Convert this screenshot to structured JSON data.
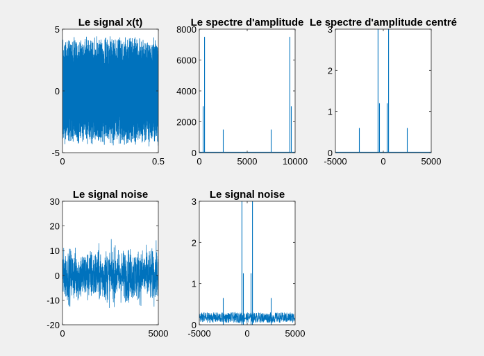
{
  "figure": {
    "background": "#f0f0f0",
    "line_color": "#0072bd"
  },
  "chart_data": [
    {
      "id": "p1",
      "type": "line",
      "title": "Le signal x(t)",
      "xlabel": "",
      "ylabel": "",
      "xlim": [
        0,
        0.5
      ],
      "ylim": [
        -5,
        5
      ],
      "xticks": [
        0,
        0.5
      ],
      "xtick_labels": [
        "0",
        "0.5"
      ],
      "yticks": [
        -5,
        0,
        5
      ],
      "ytick_labels": [
        "-5",
        "0",
        "5"
      ],
      "series": [
        {
          "kind": "dense_oscillation",
          "x_range": [
            0,
            0.5
          ],
          "envelope_max": [
            3.7,
            4.6
          ],
          "envelope_min": [
            -3.7,
            -4.6
          ]
        }
      ]
    },
    {
      "id": "p2",
      "type": "line",
      "title": "Le spectre d'amplitude",
      "xlabel": "",
      "ylabel": "",
      "xlim": [
        0,
        10000
      ],
      "ylim": [
        0,
        8000
      ],
      "xticks": [
        0,
        5000,
        10000
      ],
      "xtick_labels": [
        "0",
        "5000",
        "10000"
      ],
      "yticks": [
        0,
        2000,
        4000,
        6000,
        8000
      ],
      "ytick_labels": [
        "0",
        "2000",
        "4000",
        "6000",
        "8000"
      ],
      "series": [
        {
          "kind": "spikes",
          "x": [
            400,
            550,
            2500,
            7500,
            9450,
            9600
          ],
          "y": [
            3000,
            7500,
            1500,
            1500,
            7500,
            3000
          ]
        }
      ]
    },
    {
      "id": "p3",
      "type": "line",
      "title": "Le spectre d'amplitude centré",
      "xlabel": "",
      "ylabel": "",
      "xlim": [
        -5000,
        5000
      ],
      "ylim": [
        0,
        3
      ],
      "xticks": [
        -5000,
        0,
        5000
      ],
      "xtick_labels": [
        "-5000",
        "0",
        "5000"
      ],
      "yticks": [
        0,
        1,
        2,
        3
      ],
      "ytick_labels": [
        "0",
        "1",
        "2",
        "3"
      ],
      "series": [
        {
          "kind": "spikes",
          "x": [
            -2500,
            -550,
            -400,
            400,
            550,
            2500
          ],
          "y": [
            0.6,
            3.0,
            1.2,
            1.2,
            3.0,
            0.6
          ]
        }
      ]
    },
    {
      "id": "p4",
      "type": "line",
      "title": "Le signal noise",
      "xlabel": "",
      "ylabel": "",
      "xlim": [
        0,
        5000
      ],
      "ylim": [
        -20,
        30
      ],
      "xticks": [
        0,
        5000
      ],
      "xtick_labels": [
        "0",
        "5000"
      ],
      "yticks": [
        -20,
        -10,
        0,
        10,
        20,
        30
      ],
      "ytick_labels": [
        "-20",
        "-10",
        "0",
        "10",
        "20",
        "30"
      ],
      "series": [
        {
          "kind": "noisy_signal",
          "x_range": [
            0,
            5000
          ],
          "core_range": [
            -8,
            8
          ],
          "extremes": [
            -17,
            21
          ]
        }
      ]
    },
    {
      "id": "p5",
      "type": "line",
      "title": "Le signal noise",
      "xlabel": "",
      "ylabel": "",
      "xlim": [
        -5000,
        5000
      ],
      "ylim": [
        0,
        3
      ],
      "xticks": [
        -5000,
        0,
        5000
      ],
      "xtick_labels": [
        "-5000",
        "0",
        "5000"
      ],
      "yticks": [
        0,
        1,
        2,
        3
      ],
      "ytick_labels": [
        "0",
        "1",
        "2",
        "3"
      ],
      "series": [
        {
          "kind": "spikes_with_noise_floor",
          "x": [
            -2500,
            -550,
            -400,
            400,
            550,
            2500
          ],
          "y": [
            0.65,
            3.0,
            1.25,
            1.25,
            3.0,
            0.65
          ],
          "noise_floor": [
            0.05,
            0.3
          ]
        }
      ]
    }
  ]
}
